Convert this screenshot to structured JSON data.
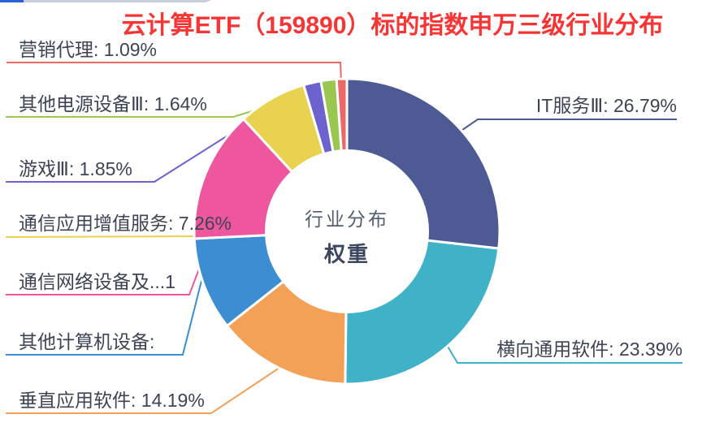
{
  "title": {
    "text": "云计算ETF（159890）标的指数申万三级行业分布",
    "color": "#f93434"
  },
  "top_bar": {
    "filled_color": "#2a61d8",
    "track_color": "#cbccde"
  },
  "center_label": {
    "line1": "行业分布",
    "line2": "权重"
  },
  "chart_data": {
    "type": "pie",
    "subtype": "donut",
    "title": "云计算ETF（159890）标的指数申万三级行业分布",
    "center_text": [
      "行业分布",
      "权重"
    ],
    "start_angle_deg": 0,
    "direction": "clockwise",
    "legend_position": "callout-labels",
    "series": [
      {
        "name": "IT服务Ⅲ",
        "value": 26.79,
        "display_label": "IT服务Ⅲ: 26.79%",
        "color": "#4d5a94"
      },
      {
        "name": "横向通用软件",
        "value": 23.39,
        "display_label": "横向通用软件: 23.39%",
        "color": "#40b2c7"
      },
      {
        "name": "垂直应用软件",
        "value": 14.19,
        "display_label": "垂直应用软件: 14.19%",
        "color": "#f4a158"
      },
      {
        "name": "其他计算机设备",
        "value": 9.87,
        "estimated": true,
        "display_label": "其他计算机设备:",
        "color": "#3d8dd3"
      },
      {
        "name": "通信网络设备及…",
        "value": 13.92,
        "estimated": true,
        "display_label": "通信网络设备及...1",
        "color": "#ee579d"
      },
      {
        "name": "通信应用增值服务",
        "value": 7.26,
        "display_label": "通信应用增值服务: 7.26%",
        "color": "#e8d24f"
      },
      {
        "name": "游戏Ⅲ",
        "value": 1.85,
        "display_label": "游戏Ⅲ: 1.85%",
        "color": "#6c63cf"
      },
      {
        "name": "其他电源设备Ⅲ",
        "value": 1.64,
        "display_label": "其他电源设备Ⅲ: 1.64%",
        "color": "#9ac74f"
      },
      {
        "name": "营销代理",
        "value": 1.09,
        "display_label": "营销代理: 1.09%",
        "color": "#eb6a67"
      }
    ]
  }
}
